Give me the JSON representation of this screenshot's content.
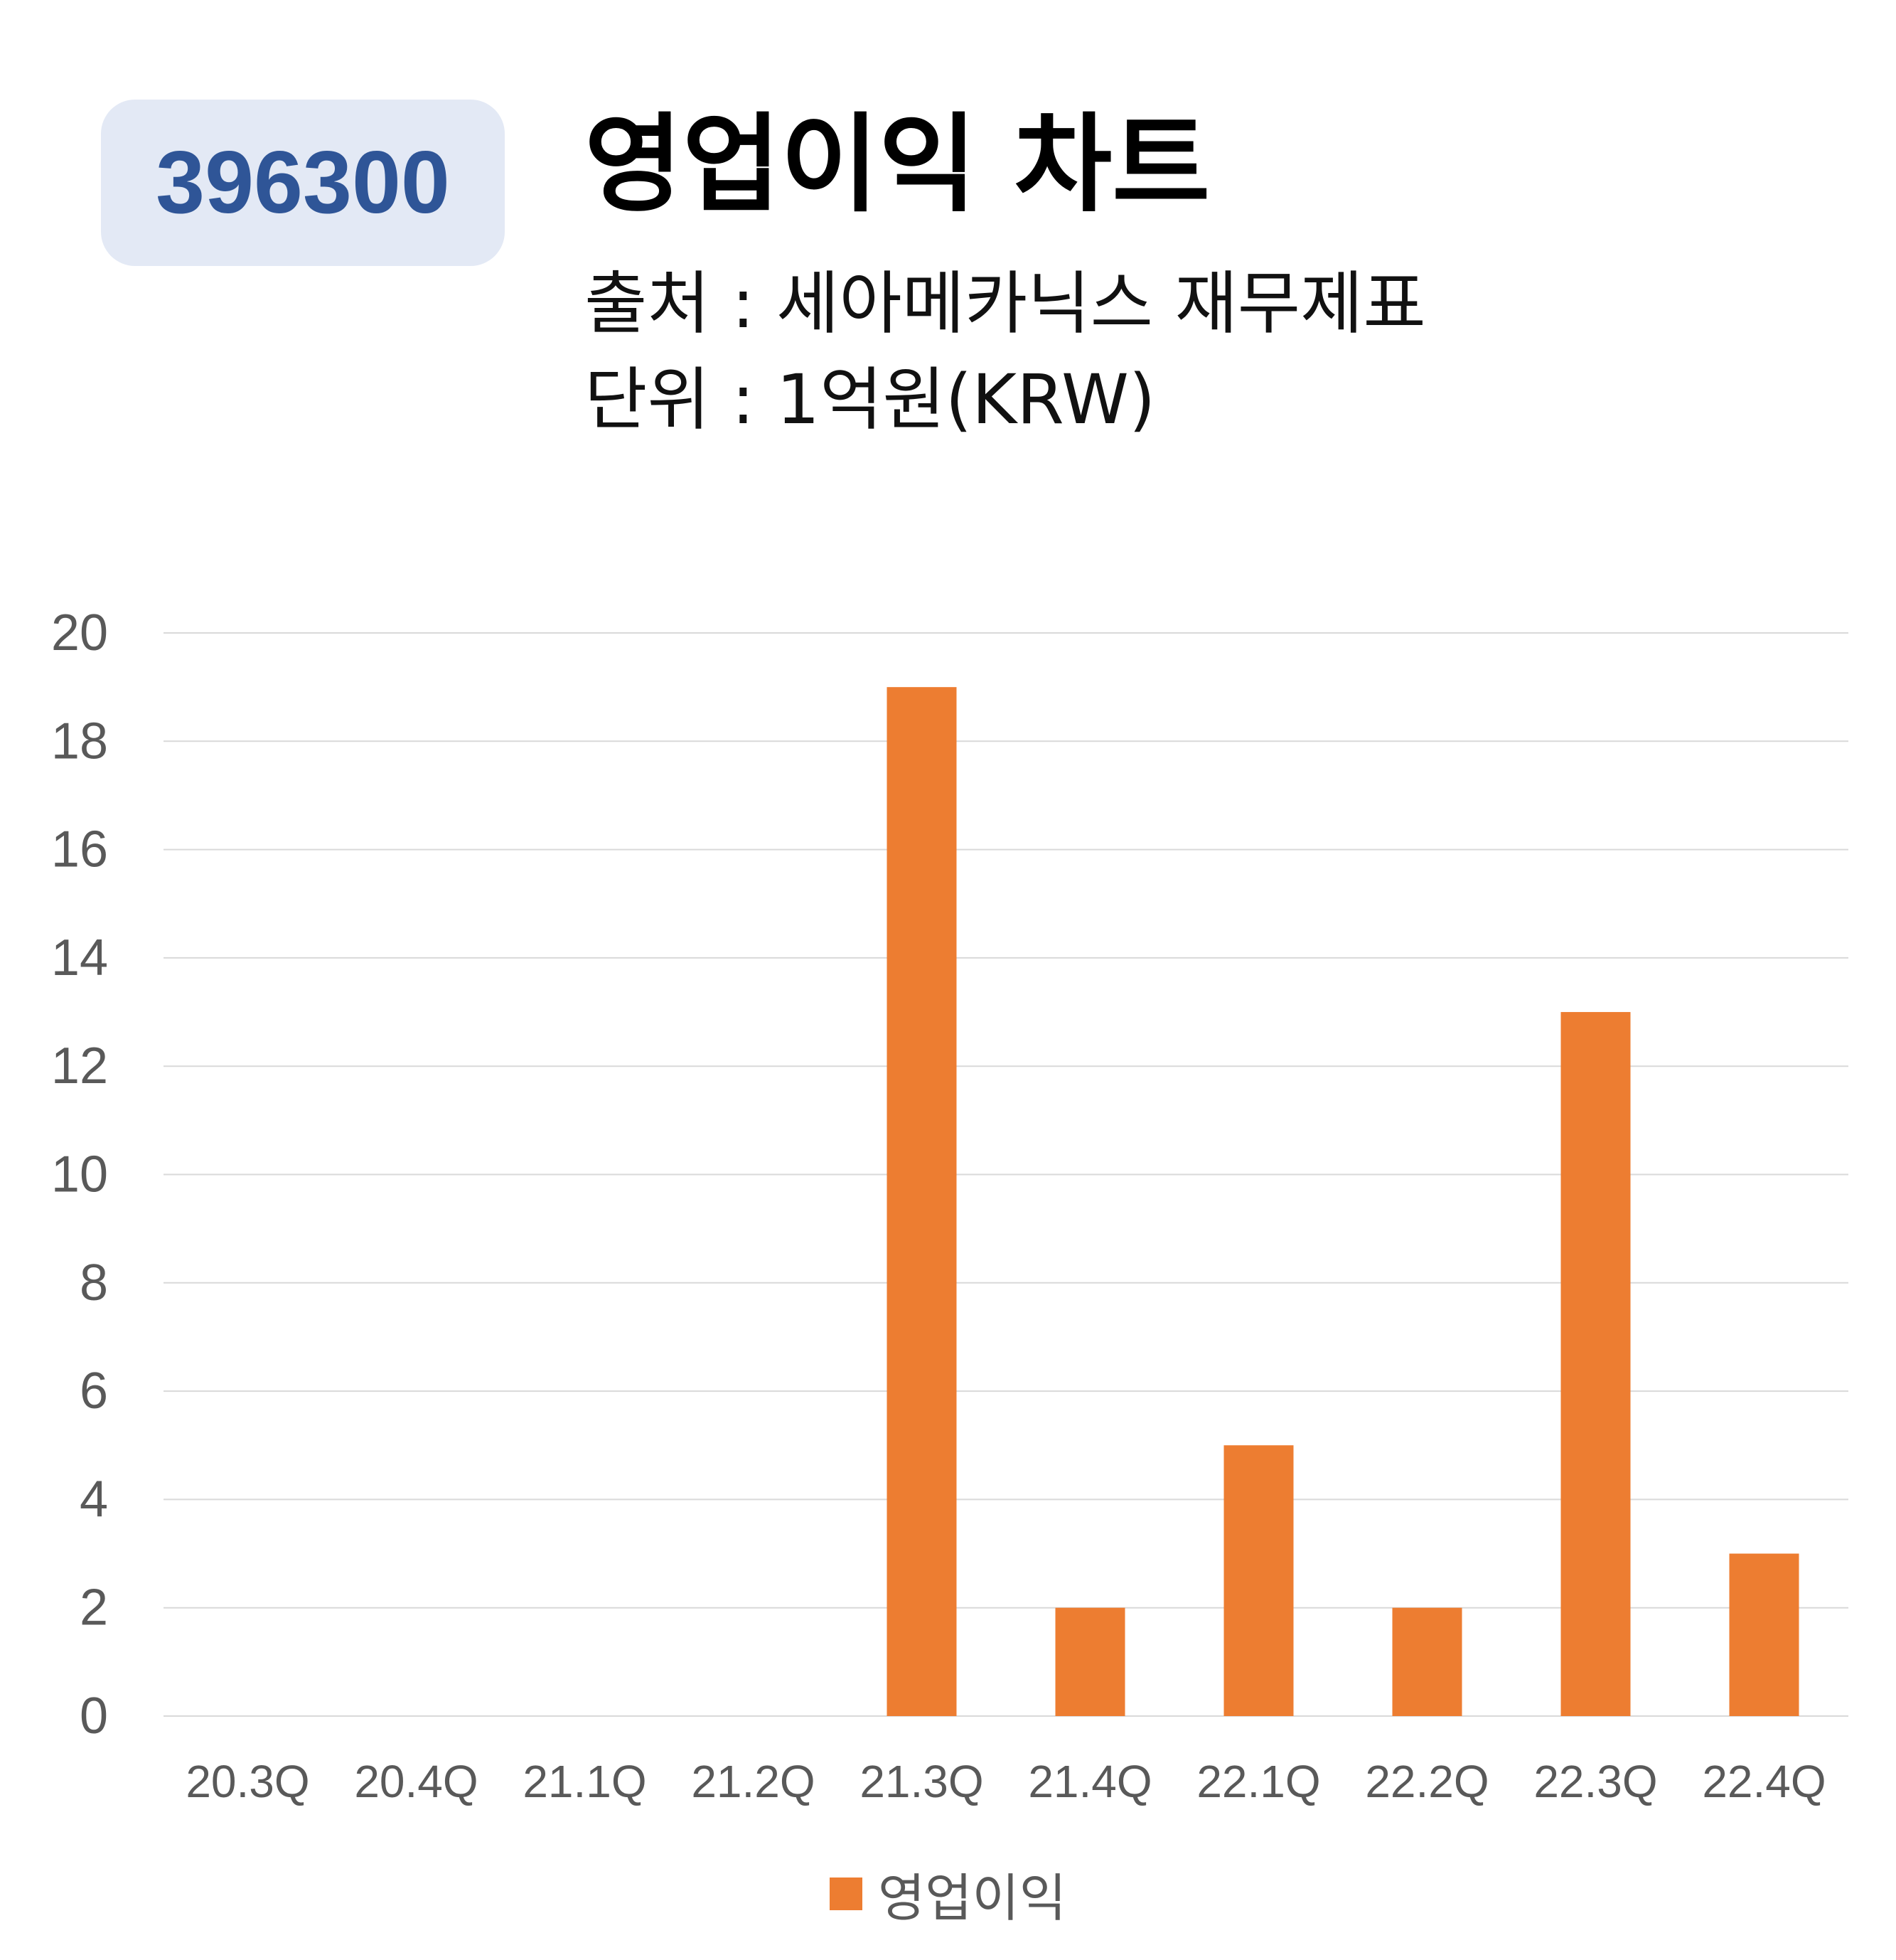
{
  "header": {
    "code": "396300",
    "title": "영업이익 차트",
    "source": "출처 : 세아메카닉스 재무제표",
    "unit": "단위 : 1억원(KRW)"
  },
  "colors": {
    "bar": "#ed7d31",
    "badge_bg": "#e3e9f5",
    "badge_text": "#2f5597",
    "grid": "#d9d9d9",
    "axis_text": "#595959"
  },
  "chart_data": {
    "type": "bar",
    "categories": [
      "20.3Q",
      "20.4Q",
      "21.1Q",
      "21.2Q",
      "21.3Q",
      "21.4Q",
      "22.1Q",
      "22.2Q",
      "22.3Q",
      "22.4Q"
    ],
    "series": [
      {
        "name": "영업이익",
        "values": [
          0,
          0,
          0,
          0,
          19,
          2,
          5,
          2,
          13,
          3
        ]
      }
    ],
    "yticks": [
      "0",
      "2",
      "4",
      "6",
      "8",
      "10",
      "12",
      "14",
      "16",
      "18",
      "20"
    ],
    "ylim": [
      0,
      20
    ],
    "grid": true,
    "legend": "bottom-center"
  }
}
